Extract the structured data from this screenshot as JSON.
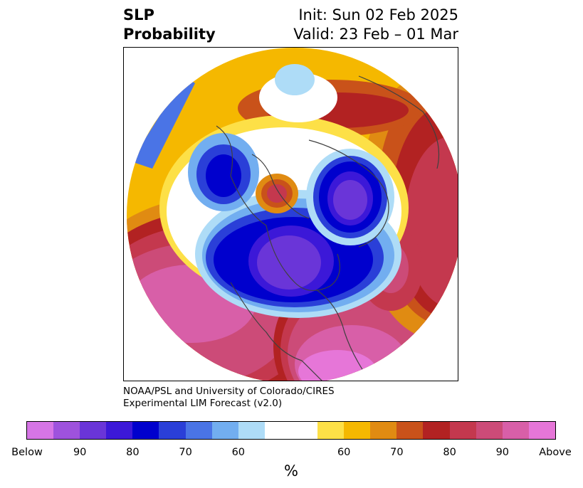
{
  "title": {
    "left_line1": "SLP",
    "left_line2": "Probability",
    "right_line1": "Init: Sun 02 Feb 2025",
    "right_line2": "Valid: 23 Feb – 01 Mar"
  },
  "credit": {
    "line1": "NOAA/PSL and University of Colorado/CIRES",
    "line2": "Experimental LIM Forecast (v2.0)"
  },
  "colorbar": {
    "colors": [
      "#d675e6",
      "#9e52dd",
      "#6a35d8",
      "#3c18d8",
      "#0000cd",
      "#2a3fd8",
      "#4a74e6",
      "#72aef0",
      "#aedcf7",
      "#ffffff",
      "#ffffff",
      "#fde047",
      "#f5b800",
      "#e08b12",
      "#c9521a",
      "#b22222",
      "#c4384e",
      "#cc4b78",
      "#d85fa8",
      "#e676d8"
    ],
    "labels": [
      "Below",
      "90",
      "80",
      "70",
      "60",
      "60",
      "70",
      "80",
      "90",
      "Above"
    ],
    "unit": "%"
  },
  "map": {
    "projection": "north-polar-stereographic",
    "variable": "SLP probability",
    "regions": [
      {
        "name": "north-america-below",
        "category": "Below 90",
        "color": "#6a35d8"
      },
      {
        "name": "arctic-siberia-below",
        "category": "Below 90",
        "color": "#6a35d8"
      },
      {
        "name": "north-pacific-above",
        "category": "Above 90",
        "color": "#d85fa8"
      },
      {
        "name": "north-atlantic-above",
        "category": "Above 90",
        "color": "#e676d8"
      },
      {
        "name": "eurasia-above",
        "category": "Above 80",
        "color": "#c4384e"
      }
    ]
  }
}
